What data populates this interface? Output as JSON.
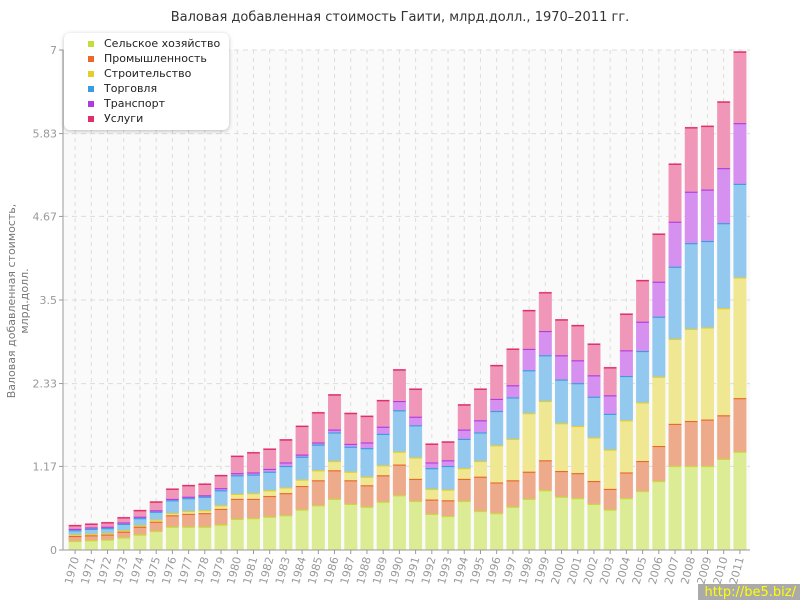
{
  "chart_data": {
    "type": "bar",
    "stacked": true,
    "title": "Валовая добавленная стоимость Гаити, млрд.долл., 1970–2011 гг.",
    "xlabel": "",
    "ylabel": "Валовая добавленная стоимость, млрд.долл.",
    "ylim": [
      0,
      7
    ],
    "yticks": [
      "0",
      "1.17",
      "2.33",
      "3.5",
      "4.67",
      "5.83",
      "7"
    ],
    "grid": true,
    "legend_position": "top-left",
    "categories": [
      "1970",
      "1971",
      "1972",
      "1973",
      "1974",
      "1975",
      "1976",
      "1977",
      "1978",
      "1979",
      "1980",
      "1981",
      "1982",
      "1983",
      "1984",
      "1985",
      "1986",
      "1987",
      "1988",
      "1989",
      "1990",
      "1991",
      "1992",
      "1993",
      "1994",
      "1995",
      "1996",
      "1997",
      "1998",
      "1999",
      "2000",
      "2001",
      "2002",
      "2003",
      "2004",
      "2005",
      "2006",
      "2007",
      "2008",
      "2009",
      "2010",
      "2011"
    ],
    "series": [
      {
        "name": "Сельское хозяйство",
        "color": "#c5dc3a",
        "fill": "#dcec94",
        "values": [
          0.13,
          0.14,
          0.15,
          0.18,
          0.22,
          0.27,
          0.33,
          0.33,
          0.33,
          0.36,
          0.44,
          0.45,
          0.47,
          0.49,
          0.57,
          0.63,
          0.72,
          0.65,
          0.61,
          0.68,
          0.77,
          0.69,
          0.51,
          0.48,
          0.69,
          0.55,
          0.52,
          0.61,
          0.72,
          0.84,
          0.75,
          0.73,
          0.65,
          0.57,
          0.73,
          0.83,
          0.97,
          1.18,
          1.18,
          1.18,
          1.28,
          1.38
        ]
      },
      {
        "name": "Промышленность",
        "color": "#e8692a",
        "fill": "#eeab8c",
        "values": [
          0.07,
          0.07,
          0.07,
          0.08,
          0.11,
          0.13,
          0.16,
          0.18,
          0.19,
          0.22,
          0.28,
          0.27,
          0.29,
          0.31,
          0.33,
          0.35,
          0.4,
          0.33,
          0.3,
          0.37,
          0.43,
          0.31,
          0.2,
          0.22,
          0.31,
          0.48,
          0.43,
          0.37,
          0.38,
          0.42,
          0.36,
          0.35,
          0.32,
          0.29,
          0.36,
          0.42,
          0.49,
          0.59,
          0.63,
          0.65,
          0.61,
          0.75
        ]
      },
      {
        "name": "Строительство",
        "color": "#e2cf2e",
        "fill": "#efe792",
        "values": [
          0.02,
          0.02,
          0.02,
          0.02,
          0.02,
          0.03,
          0.03,
          0.04,
          0.04,
          0.05,
          0.07,
          0.08,
          0.08,
          0.08,
          0.09,
          0.14,
          0.13,
          0.12,
          0.12,
          0.14,
          0.18,
          0.3,
          0.15,
          0.15,
          0.15,
          0.22,
          0.52,
          0.58,
          0.82,
          0.83,
          0.67,
          0.66,
          0.61,
          0.55,
          0.73,
          0.82,
          0.97,
          1.19,
          1.29,
          1.29,
          1.5,
          1.69
        ]
      },
      {
        "name": "Торговля",
        "color": "#3a9de0",
        "fill": "#93c9ef",
        "values": [
          0.06,
          0.07,
          0.07,
          0.09,
          0.1,
          0.11,
          0.18,
          0.18,
          0.19,
          0.21,
          0.26,
          0.26,
          0.26,
          0.3,
          0.32,
          0.36,
          0.4,
          0.35,
          0.4,
          0.44,
          0.58,
          0.45,
          0.29,
          0.33,
          0.41,
          0.4,
          0.48,
          0.58,
          0.6,
          0.64,
          0.61,
          0.6,
          0.57,
          0.5,
          0.62,
          0.72,
          0.84,
          1.01,
          1.2,
          1.21,
          1.19,
          1.31
        ]
      },
      {
        "name": "Транспорт",
        "color": "#b03ce0",
        "fill": "#d690ef",
        "values": [
          0.02,
          0.02,
          0.02,
          0.02,
          0.02,
          0.02,
          0.02,
          0.02,
          0.02,
          0.03,
          0.03,
          0.03,
          0.04,
          0.05,
          0.03,
          0.03,
          0.04,
          0.04,
          0.08,
          0.1,
          0.13,
          0.12,
          0.08,
          0.08,
          0.13,
          0.17,
          0.17,
          0.17,
          0.3,
          0.34,
          0.34,
          0.32,
          0.3,
          0.26,
          0.36,
          0.41,
          0.49,
          0.63,
          0.72,
          0.72,
          0.77,
          0.85
        ]
      },
      {
        "name": "Услуги",
        "color": "#e0306a",
        "fill": "#f097b9",
        "values": [
          0.05,
          0.05,
          0.06,
          0.07,
          0.09,
          0.12,
          0.14,
          0.16,
          0.16,
          0.18,
          0.24,
          0.28,
          0.28,
          0.32,
          0.4,
          0.42,
          0.49,
          0.43,
          0.37,
          0.37,
          0.44,
          0.39,
          0.26,
          0.26,
          0.35,
          0.44,
          0.47,
          0.51,
          0.54,
          0.54,
          0.5,
          0.49,
          0.44,
          0.39,
          0.51,
          0.58,
          0.67,
          0.81,
          0.9,
          0.89,
          0.93,
          1.0
        ]
      }
    ]
  },
  "watermark": "http://be5.biz/"
}
